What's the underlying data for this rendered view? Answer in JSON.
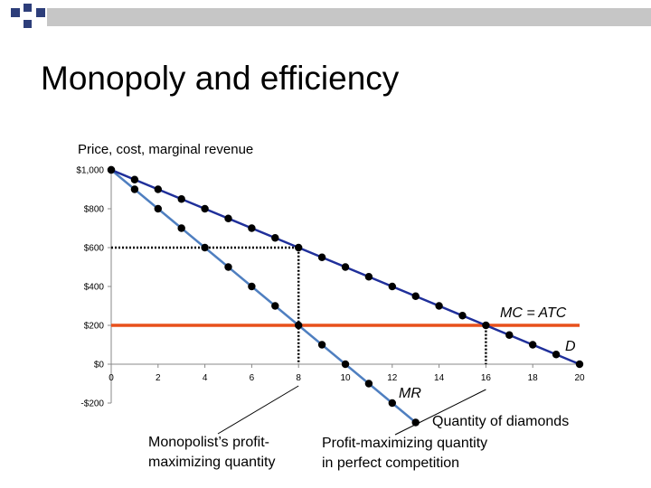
{
  "slide": {
    "title": "Monopoly and efficiency"
  },
  "colors": {
    "demand_line": "#1f2f9a",
    "mr_line": "#4f7fc0",
    "mc_line": "#e8501c",
    "marker": "#000000",
    "header_bar": "#c6c6c6",
    "header_squares": "#2d3e7a"
  },
  "chart_data": {
    "type": "line",
    "ylabel": "Price, cost, marginal revenue",
    "xlabel": "Quantity of diamonds",
    "xlim": [
      0,
      20
    ],
    "ylim": [
      -200,
      1000
    ],
    "x_ticks": [
      0,
      2,
      4,
      6,
      8,
      10,
      12,
      14,
      16,
      18,
      20
    ],
    "y_ticks": [
      {
        "value": 1000,
        "label": "$1,000"
      },
      {
        "value": 800,
        "label": "$800"
      },
      {
        "value": 600,
        "label": "$600"
      },
      {
        "value": 400,
        "label": "$400"
      },
      {
        "value": 200,
        "label": "$200"
      },
      {
        "value": 0,
        "label": "$0"
      },
      {
        "value": -200,
        "label": "-$200"
      }
    ],
    "grid": false,
    "series": [
      {
        "name": "D",
        "x": [
          0,
          1,
          2,
          3,
          4,
          5,
          6,
          7,
          8,
          9,
          10,
          11,
          12,
          13,
          14,
          15,
          16,
          17,
          18,
          19,
          20
        ],
        "y": [
          1000,
          950,
          900,
          850,
          800,
          750,
          700,
          650,
          600,
          550,
          500,
          450,
          400,
          350,
          300,
          250,
          200,
          150,
          100,
          50,
          0
        ]
      },
      {
        "name": "MR",
        "x": [
          0,
          1,
          2,
          3,
          4,
          5,
          6,
          7,
          8,
          9,
          10,
          11,
          12,
          13
        ],
        "y": [
          1000,
          900,
          800,
          700,
          600,
          500,
          400,
          300,
          200,
          100,
          0,
          -100,
          -200,
          -300
        ]
      },
      {
        "name": "MC = ATC",
        "x": [
          0,
          20
        ],
        "y": [
          200,
          200
        ]
      }
    ],
    "reference_lines": [
      {
        "x": 8,
        "y": 600
      },
      {
        "x": 16,
        "y": 200
      }
    ],
    "annotations": [
      {
        "key": "monopoly",
        "text_lines": [
          "Monopolist’s profit-",
          "maximizing quantity"
        ],
        "target_x": 8
      },
      {
        "key": "competition",
        "text_lines": [
          "Profit-maximizing quantity",
          "in perfect competition"
        ],
        "target_x": 16
      }
    ]
  }
}
